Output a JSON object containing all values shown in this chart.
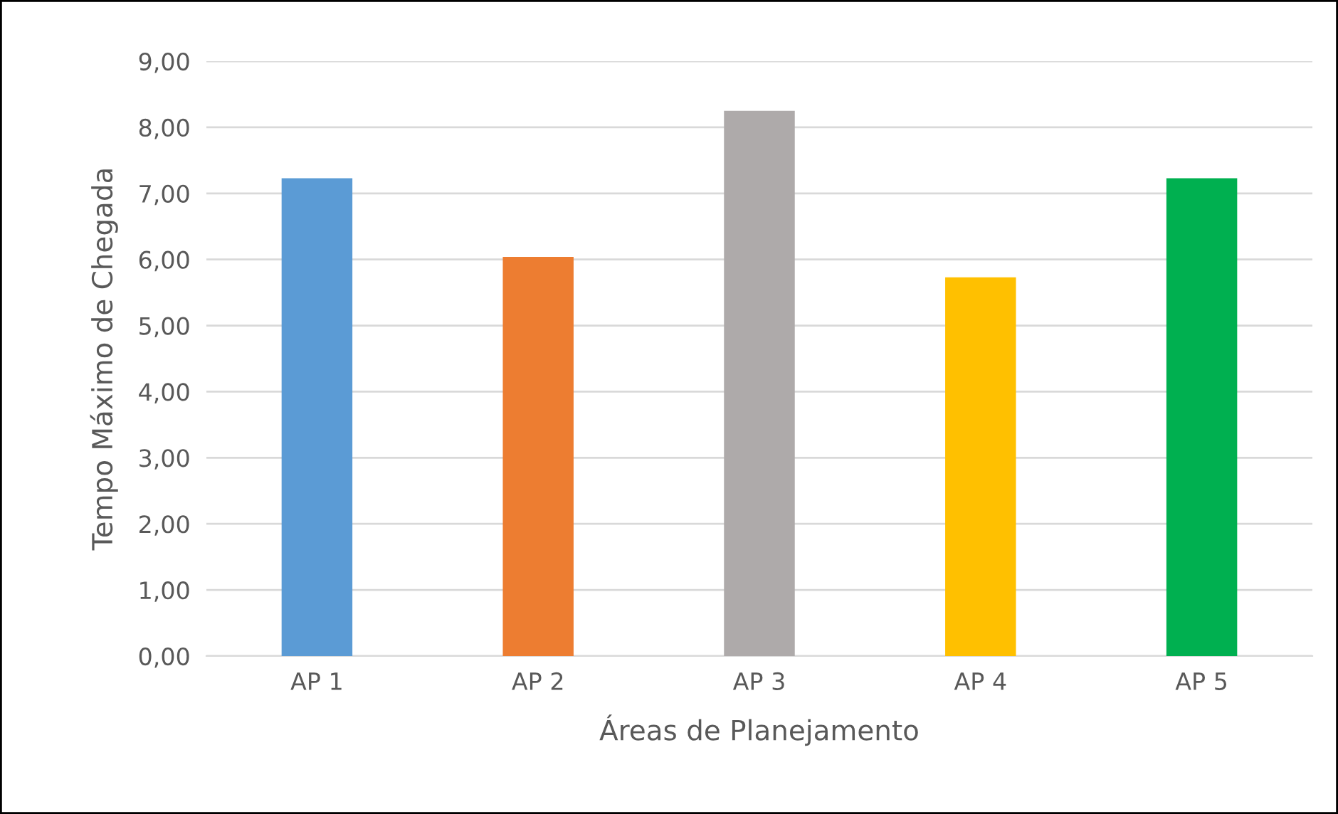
{
  "chart_data": {
    "type": "bar",
    "xlabel": "Áreas de Planejamento",
    "ylabel": "Tempo Máximo de Chegada",
    "categories": [
      "AP 1",
      "AP 2",
      "AP 3",
      "AP 4",
      "AP 5"
    ],
    "values": [
      7.23,
      6.04,
      8.25,
      5.73,
      7.23
    ],
    "colors": [
      "#5b9bd5",
      "#ed7d31",
      "#aeaaaa",
      "#ffc000",
      "#00b050"
    ],
    "ylim": [
      0,
      9
    ],
    "yticks": [
      {
        "value": 0,
        "label": "0,00"
      },
      {
        "value": 1,
        "label": "1,00"
      },
      {
        "value": 2,
        "label": "2,00"
      },
      {
        "value": 3,
        "label": "3,00"
      },
      {
        "value": 4,
        "label": "4,00"
      },
      {
        "value": 5,
        "label": "5,00"
      },
      {
        "value": 6,
        "label": "6,00"
      },
      {
        "value": 7,
        "label": "7,00"
      },
      {
        "value": 8,
        "label": "8,00"
      },
      {
        "value": 9,
        "label": "9,00"
      }
    ],
    "grid": "y"
  }
}
